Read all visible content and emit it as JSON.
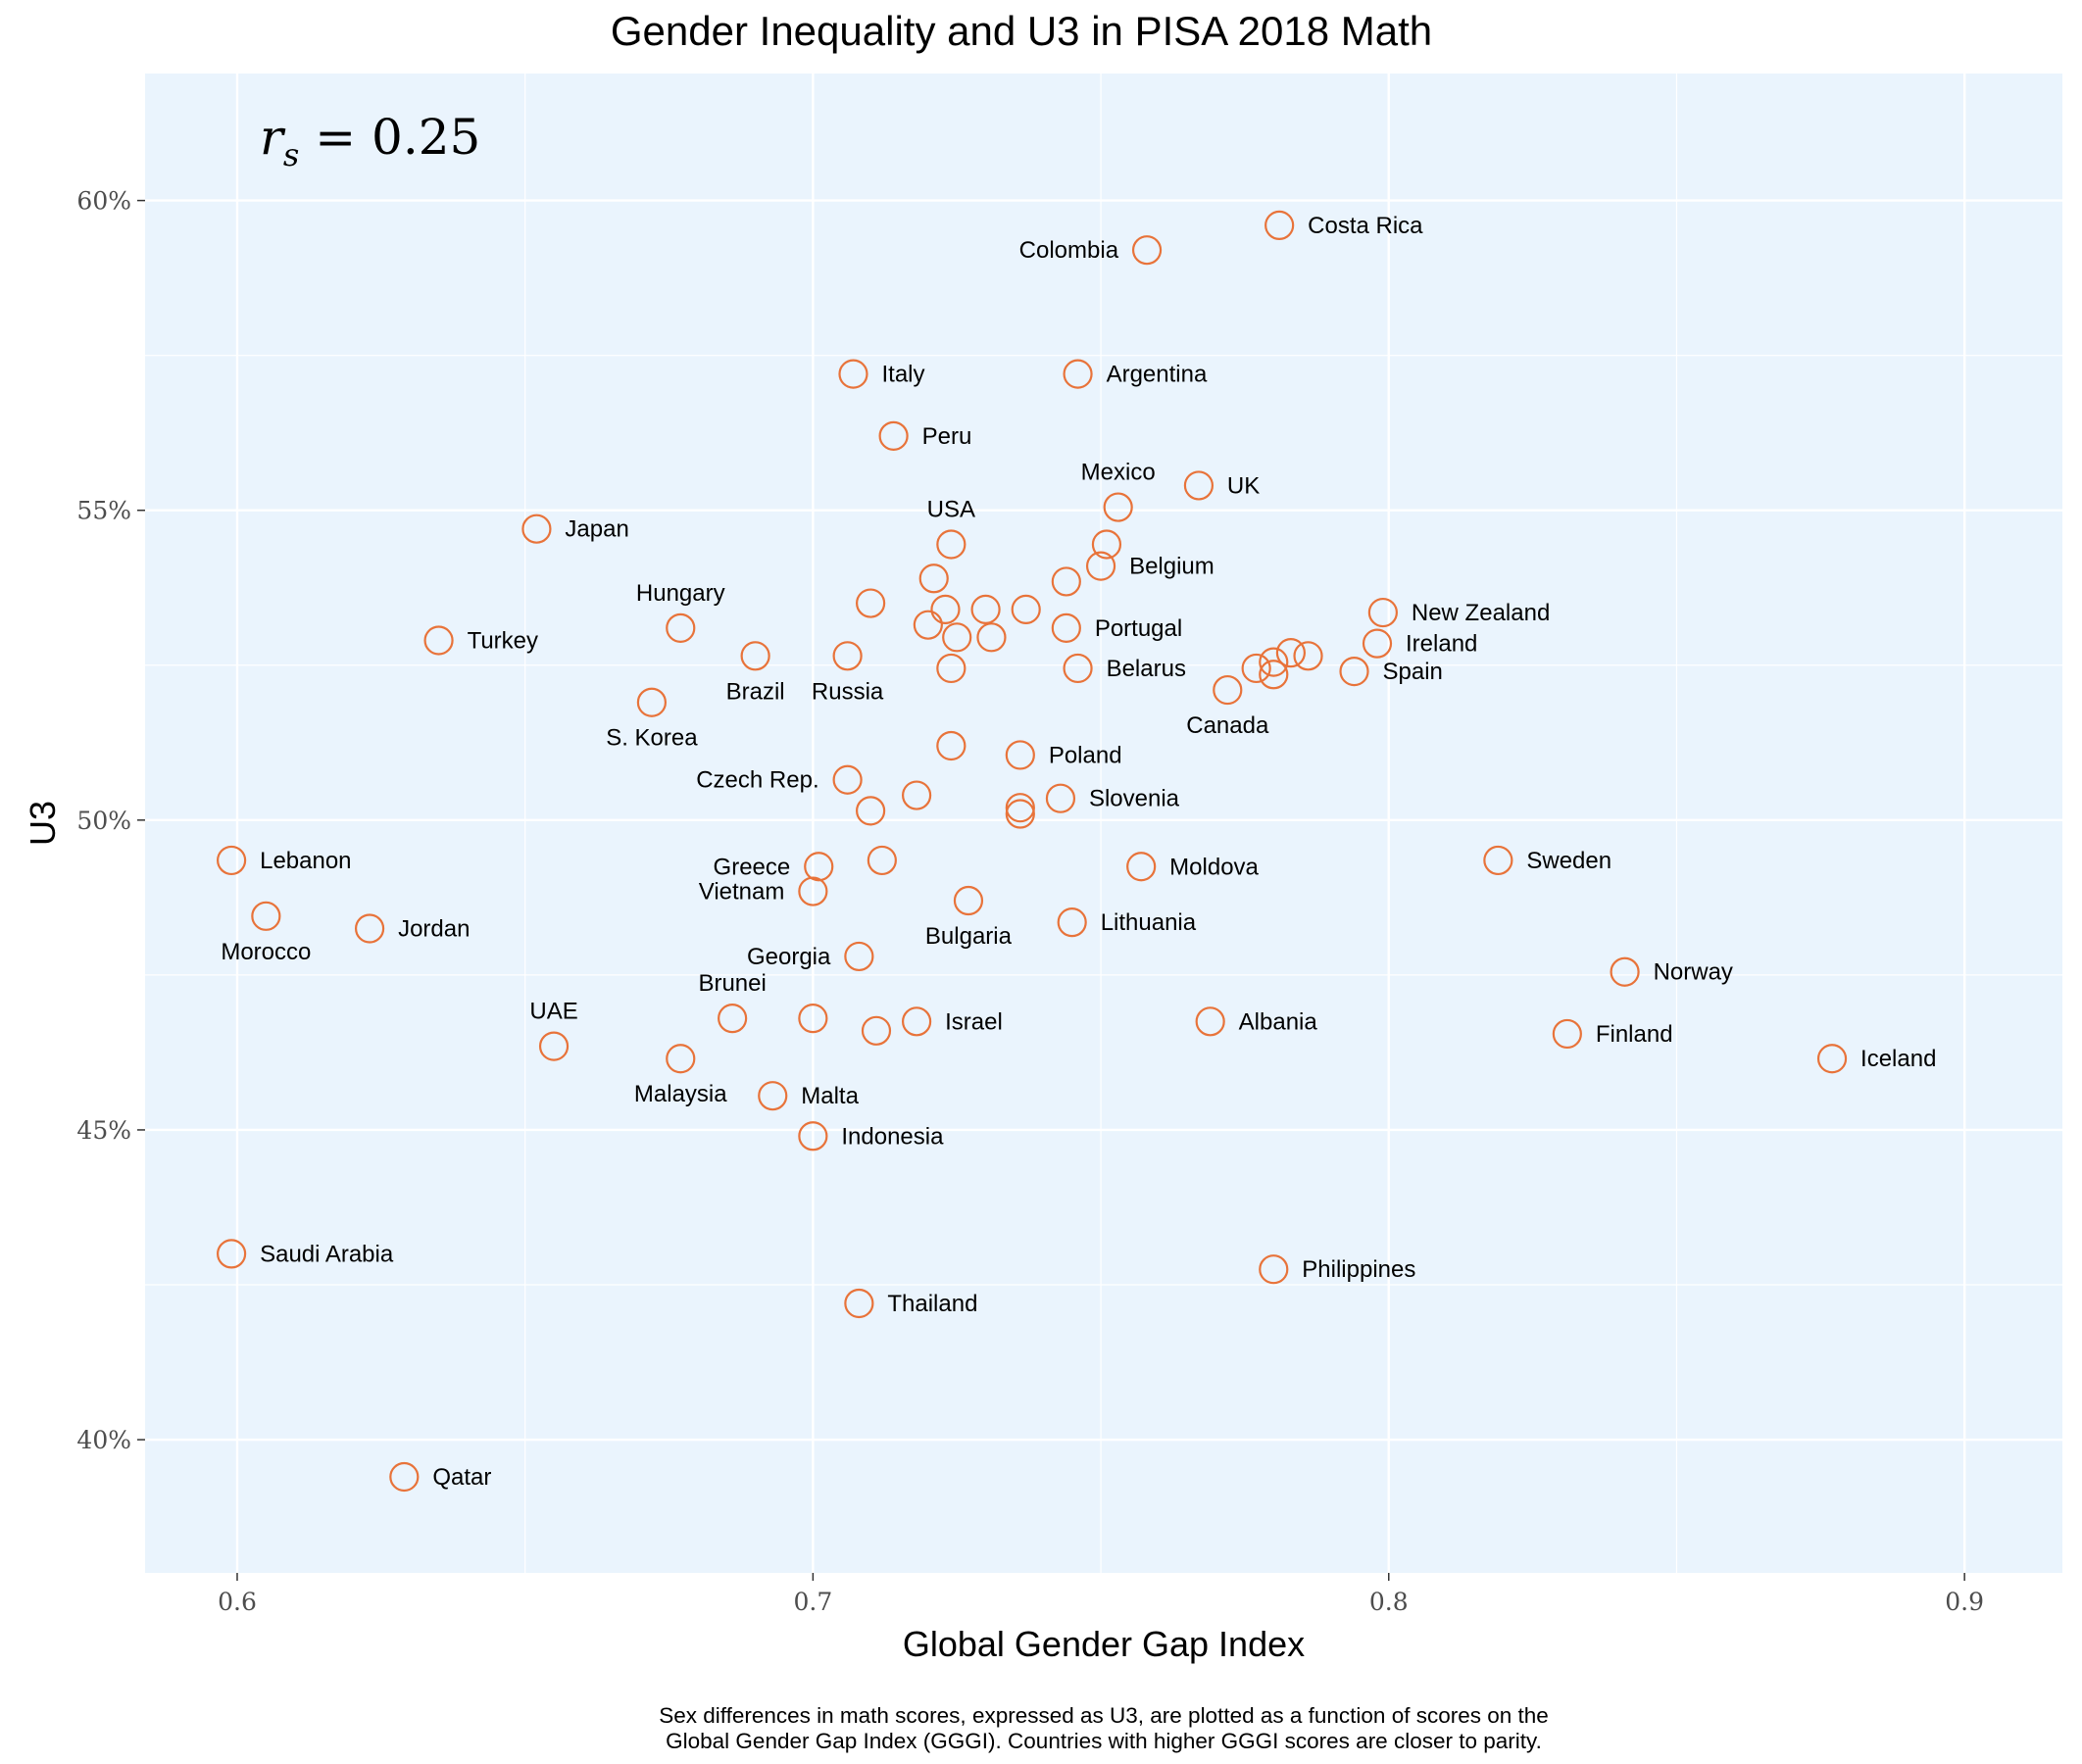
{
  "colors": {
    "panel": "#eaf4fd",
    "grid": "#ffffff",
    "point": "#e8733a"
  },
  "chart_data": {
    "type": "scatter",
    "title": "Gender Inequality and U3 in PISA 2018 Math",
    "xlabel": "Global Gender Gap Index",
    "ylabel": "U3",
    "xlim": [
      0.584,
      0.917
    ],
    "ylim": [
      0.3785,
      0.6205
    ],
    "x_ticks": [
      0.6,
      0.7,
      0.8,
      0.9
    ],
    "x_tick_labels": [
      "0.6",
      "0.7",
      "0.8",
      "0.9"
    ],
    "y_ticks": [
      0.4,
      0.45,
      0.5,
      0.55,
      0.6
    ],
    "y_tick_labels": [
      "40%",
      "45%",
      "50%",
      "55%",
      "60%"
    ],
    "grid": true,
    "annotation": {
      "variable": "r",
      "subscript": "s",
      "text": " = 0.25"
    },
    "caption": [
      "Sex differences in math scores, expressed as U3, are plotted as a function of scores on the",
      "Global Gender Gap Index (GGGI). Countries with higher GGGI scores are closer to parity."
    ],
    "points": [
      {
        "x": 0.781,
        "y": 0.596,
        "label": "Costa Rica",
        "pos": "right"
      },
      {
        "x": 0.758,
        "y": 0.592,
        "label": "Colombia",
        "pos": "left"
      },
      {
        "x": 0.707,
        "y": 0.572,
        "label": "Italy",
        "pos": "right"
      },
      {
        "x": 0.746,
        "y": 0.572,
        "label": "Argentina",
        "pos": "right"
      },
      {
        "x": 0.714,
        "y": 0.562,
        "label": "Peru",
        "pos": "right"
      },
      {
        "x": 0.767,
        "y": 0.554,
        "label": "UK",
        "pos": "right"
      },
      {
        "x": 0.753,
        "y": 0.5505,
        "label": "Mexico",
        "pos": "above"
      },
      {
        "x": 0.652,
        "y": 0.547,
        "label": "Japan",
        "pos": "right"
      },
      {
        "x": 0.724,
        "y": 0.5445,
        "label": "USA",
        "pos": "above"
      },
      {
        "x": 0.751,
        "y": 0.5445,
        "label": "",
        "pos": "right"
      },
      {
        "x": 0.75,
        "y": 0.541,
        "label": "Belgium",
        "pos": "right"
      },
      {
        "x": 0.721,
        "y": 0.539,
        "label": "",
        "pos": "right"
      },
      {
        "x": 0.744,
        "y": 0.5385,
        "label": "",
        "pos": "right"
      },
      {
        "x": 0.71,
        "y": 0.535,
        "label": "",
        "pos": "right"
      },
      {
        "x": 0.723,
        "y": 0.534,
        "label": "",
        "pos": "right"
      },
      {
        "x": 0.73,
        "y": 0.534,
        "label": "",
        "pos": "right"
      },
      {
        "x": 0.737,
        "y": 0.534,
        "label": "",
        "pos": "right"
      },
      {
        "x": 0.799,
        "y": 0.5335,
        "label": "New Zealand",
        "pos": "right"
      },
      {
        "x": 0.72,
        "y": 0.5315,
        "label": "",
        "pos": "right"
      },
      {
        "x": 0.744,
        "y": 0.531,
        "label": "Portugal",
        "pos": "right"
      },
      {
        "x": 0.677,
        "y": 0.531,
        "label": "Hungary",
        "pos": "above"
      },
      {
        "x": 0.725,
        "y": 0.5295,
        "label": "",
        "pos": "right"
      },
      {
        "x": 0.731,
        "y": 0.5295,
        "label": "",
        "pos": "right"
      },
      {
        "x": 0.635,
        "y": 0.529,
        "label": "Turkey",
        "pos": "right"
      },
      {
        "x": 0.798,
        "y": 0.5285,
        "label": "Ireland",
        "pos": "right"
      },
      {
        "x": 0.786,
        "y": 0.5265,
        "label": "",
        "pos": "right"
      },
      {
        "x": 0.783,
        "y": 0.527,
        "label": "",
        "pos": "right"
      },
      {
        "x": 0.69,
        "y": 0.5265,
        "label": "Brazil",
        "pos": "below"
      },
      {
        "x": 0.706,
        "y": 0.5265,
        "label": "Russia",
        "pos": "below"
      },
      {
        "x": 0.78,
        "y": 0.5255,
        "label": "",
        "pos": "right"
      },
      {
        "x": 0.777,
        "y": 0.5245,
        "label": "",
        "pos": "right"
      },
      {
        "x": 0.78,
        "y": 0.5235,
        "label": "",
        "pos": "right"
      },
      {
        "x": 0.746,
        "y": 0.5245,
        "label": "Belarus",
        "pos": "right"
      },
      {
        "x": 0.724,
        "y": 0.5245,
        "label": "",
        "pos": "right"
      },
      {
        "x": 0.794,
        "y": 0.524,
        "label": "Spain",
        "pos": "right"
      },
      {
        "x": 0.772,
        "y": 0.521,
        "label": "Canada",
        "pos": "below"
      },
      {
        "x": 0.672,
        "y": 0.519,
        "label": "S. Korea",
        "pos": "below"
      },
      {
        "x": 0.724,
        "y": 0.512,
        "label": "",
        "pos": "right"
      },
      {
        "x": 0.736,
        "y": 0.5105,
        "label": "Poland",
        "pos": "right"
      },
      {
        "x": 0.706,
        "y": 0.5065,
        "label": "Czech Rep.",
        "pos": "left"
      },
      {
        "x": 0.718,
        "y": 0.504,
        "label": "",
        "pos": "right"
      },
      {
        "x": 0.743,
        "y": 0.5035,
        "label": "Slovenia",
        "pos": "right"
      },
      {
        "x": 0.736,
        "y": 0.502,
        "label": "",
        "pos": "right"
      },
      {
        "x": 0.71,
        "y": 0.5015,
        "label": "",
        "pos": "right"
      },
      {
        "x": 0.736,
        "y": 0.501,
        "label": "",
        "pos": "right"
      },
      {
        "x": 0.599,
        "y": 0.4935,
        "label": "Lebanon",
        "pos": "right"
      },
      {
        "x": 0.712,
        "y": 0.4935,
        "label": "",
        "pos": "right"
      },
      {
        "x": 0.819,
        "y": 0.4935,
        "label": "Sweden",
        "pos": "right"
      },
      {
        "x": 0.701,
        "y": 0.4925,
        "label": "Greece",
        "pos": "left"
      },
      {
        "x": 0.757,
        "y": 0.4925,
        "label": "Moldova",
        "pos": "right"
      },
      {
        "x": 0.7,
        "y": 0.4885,
        "label": "Vietnam",
        "pos": "left"
      },
      {
        "x": 0.727,
        "y": 0.487,
        "label": "Bulgaria",
        "pos": "below"
      },
      {
        "x": 0.605,
        "y": 0.4845,
        "label": "Morocco",
        "pos": "below"
      },
      {
        "x": 0.623,
        "y": 0.4825,
        "label": "Jordan",
        "pos": "right"
      },
      {
        "x": 0.745,
        "y": 0.4835,
        "label": "Lithuania",
        "pos": "right"
      },
      {
        "x": 0.708,
        "y": 0.478,
        "label": "Georgia",
        "pos": "left"
      },
      {
        "x": 0.841,
        "y": 0.4755,
        "label": "Norway",
        "pos": "right"
      },
      {
        "x": 0.686,
        "y": 0.468,
        "label": "Brunei",
        "pos": "above"
      },
      {
        "x": 0.7,
        "y": 0.468,
        "label": "",
        "pos": "right"
      },
      {
        "x": 0.718,
        "y": 0.4675,
        "label": "Israel",
        "pos": "right"
      },
      {
        "x": 0.769,
        "y": 0.4675,
        "label": "Albania",
        "pos": "right"
      },
      {
        "x": 0.711,
        "y": 0.466,
        "label": "",
        "pos": "right"
      },
      {
        "x": 0.831,
        "y": 0.4655,
        "label": "Finland",
        "pos": "right"
      },
      {
        "x": 0.655,
        "y": 0.4635,
        "label": "UAE",
        "pos": "above"
      },
      {
        "x": 0.677,
        "y": 0.4615,
        "label": "Malaysia",
        "pos": "below"
      },
      {
        "x": 0.877,
        "y": 0.4615,
        "label": "Iceland",
        "pos": "right"
      },
      {
        "x": 0.693,
        "y": 0.4555,
        "label": "Malta",
        "pos": "right"
      },
      {
        "x": 0.7,
        "y": 0.449,
        "label": "Indonesia",
        "pos": "right"
      },
      {
        "x": 0.599,
        "y": 0.43,
        "label": "Saudi Arabia",
        "pos": "right"
      },
      {
        "x": 0.78,
        "y": 0.4275,
        "label": "Philippines",
        "pos": "right"
      },
      {
        "x": 0.708,
        "y": 0.422,
        "label": "Thailand",
        "pos": "right"
      },
      {
        "x": 0.629,
        "y": 0.394,
        "label": "Qatar",
        "pos": "right"
      }
    ]
  }
}
